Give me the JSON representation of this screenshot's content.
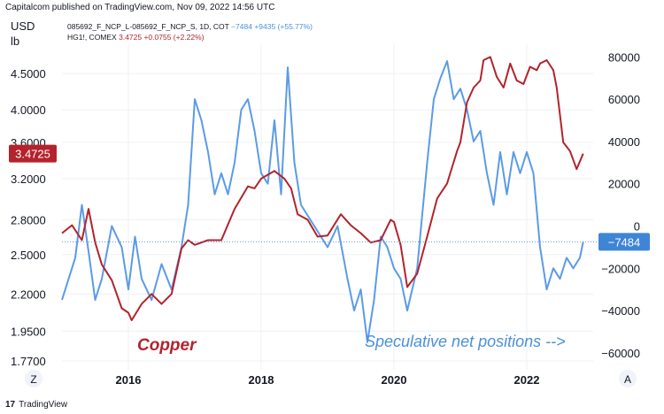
{
  "header": "Capitalcom published on TradingView.com, Nov 09, 2022 14:56 UTC",
  "units": {
    "left_line1": "USD",
    "left_line2": "lb"
  },
  "legend": {
    "line1_symbol": "085692_F_NCP_L-085692_F_NCP_S, 1D, COT",
    "line1_values": "−7484  +9435 (+55.77%)",
    "line2_symbol": "HG1!, COMEX",
    "line2_values": "3.4725  +0.0755 (+2.22%)"
  },
  "footer": {
    "logo_text": "TradingView",
    "logo_icon": "tradingview-logo-icon"
  },
  "buttons": {
    "left": "Z",
    "right": "A"
  },
  "colors": {
    "copper": "#b3232d",
    "positions": "#5b9be6",
    "grid": "#eef0f4"
  },
  "chart_data": {
    "type": "line",
    "x_axis": {
      "ticks": [
        "2016",
        "2018",
        "2020",
        "2022"
      ],
      "range": [
        2015.0,
        2023.0
      ]
    },
    "left_axis": {
      "scale": "log",
      "ticks": [
        "4.5000",
        "4.0000",
        "3.6000",
        "3.2000",
        "2.8000",
        "2.5000",
        "2.2000",
        "1.9500",
        "1.7700"
      ],
      "range": [
        1.72,
        4.95
      ]
    },
    "right_axis": {
      "ticks": [
        "80000",
        "60000",
        "40000",
        "20000",
        "0",
        "−20000",
        "−40000",
        "−60000"
      ],
      "range": [
        -68000,
        86000
      ]
    },
    "annotations": {
      "copper": "Copper",
      "positions": "Speculative net positions -->"
    },
    "last_value_labels": {
      "copper": "3.4725",
      "positions": "−7484"
    },
    "series": [
      {
        "axis": "left",
        "x": [
          2015.0,
          2015.15,
          2015.3,
          2015.4,
          2015.5,
          2015.6,
          2015.75,
          2015.9,
          2016.0,
          2016.05,
          2016.2,
          2016.35,
          2016.5,
          2016.65,
          2016.8,
          2016.9,
          2017.0,
          2017.2,
          2017.4,
          2017.6,
          2017.8,
          2017.9,
          2018.0,
          2018.2,
          2018.35,
          2018.45,
          2018.55,
          2018.7,
          2018.85,
          2019.0,
          2019.2,
          2019.35,
          2019.5,
          2019.65,
          2019.8,
          2019.95,
          2020.0,
          2020.1,
          2020.2,
          2020.35,
          2020.5,
          2020.65,
          2020.8,
          2020.95,
          2021.0,
          2021.1,
          2021.2,
          2021.3,
          2021.35,
          2021.45,
          2021.55,
          2021.65,
          2021.75,
          2021.85,
          2021.95,
          2022.05,
          2022.15,
          2022.2,
          2022.3,
          2022.4,
          2022.45,
          2022.55,
          2022.65,
          2022.75,
          2022.85
        ],
        "values": [
          2.68,
          2.75,
          2.62,
          2.9,
          2.6,
          2.42,
          2.3,
          2.1,
          2.07,
          2.02,
          2.13,
          2.2,
          2.13,
          2.2,
          2.55,
          2.62,
          2.58,
          2.62,
          2.62,
          2.9,
          3.12,
          3.1,
          3.2,
          3.28,
          3.2,
          3.1,
          2.85,
          2.8,
          2.65,
          2.66,
          2.85,
          2.75,
          2.68,
          2.6,
          2.62,
          2.8,
          2.78,
          2.58,
          2.25,
          2.35,
          2.65,
          3.0,
          3.15,
          3.5,
          3.6,
          4.1,
          4.3,
          4.4,
          4.7,
          4.75,
          4.45,
          4.3,
          4.65,
          4.4,
          4.35,
          4.6,
          4.55,
          4.65,
          4.7,
          4.55,
          4.3,
          3.6,
          3.5,
          3.3,
          3.47
        ]
      },
      {
        "axis": "right",
        "x": [
          2015.0,
          2015.1,
          2015.2,
          2015.3,
          2015.4,
          2015.5,
          2015.6,
          2015.75,
          2015.9,
          2016.0,
          2016.1,
          2016.2,
          2016.35,
          2016.5,
          2016.65,
          2016.8,
          2016.9,
          2017.0,
          2017.1,
          2017.2,
          2017.3,
          2017.4,
          2017.5,
          2017.6,
          2017.7,
          2017.8,
          2017.9,
          2018.0,
          2018.1,
          2018.2,
          2018.3,
          2018.4,
          2018.5,
          2018.6,
          2018.7,
          2018.8,
          2018.9,
          2019.0,
          2019.15,
          2019.3,
          2019.4,
          2019.5,
          2019.6,
          2019.7,
          2019.8,
          2019.9,
          2020.0,
          2020.1,
          2020.2,
          2020.35,
          2020.5,
          2020.6,
          2020.7,
          2020.8,
          2020.9,
          2021.0,
          2021.1,
          2021.2,
          2021.3,
          2021.4,
          2021.5,
          2021.6,
          2021.7,
          2021.8,
          2021.9,
          2022.0,
          2022.1,
          2022.2,
          2022.3,
          2022.4,
          2022.5,
          2022.6,
          2022.7,
          2022.8,
          2022.85
        ],
        "values": [
          -35000,
          -25000,
          -15000,
          10000,
          -12000,
          -35000,
          -25000,
          0,
          -10000,
          -30000,
          -5000,
          -25000,
          -35000,
          -18000,
          -30000,
          -10000,
          10000,
          60000,
          50000,
          35000,
          15000,
          25000,
          15000,
          30000,
          55000,
          60000,
          45000,
          25000,
          20000,
          50000,
          15000,
          75000,
          30000,
          10000,
          5000,
          0,
          -5000,
          -10000,
          0,
          -25000,
          -40000,
          -30000,
          -55000,
          -35000,
          -5000,
          -10000,
          -20000,
          -25000,
          -40000,
          -20000,
          30000,
          60000,
          70000,
          78000,
          60000,
          65000,
          55000,
          40000,
          45000,
          25000,
          10000,
          35000,
          15000,
          35000,
          25000,
          35000,
          25000,
          -10000,
          -30000,
          -20000,
          -25000,
          -15000,
          -20000,
          -15000,
          -7484
        ]
      }
    ]
  }
}
